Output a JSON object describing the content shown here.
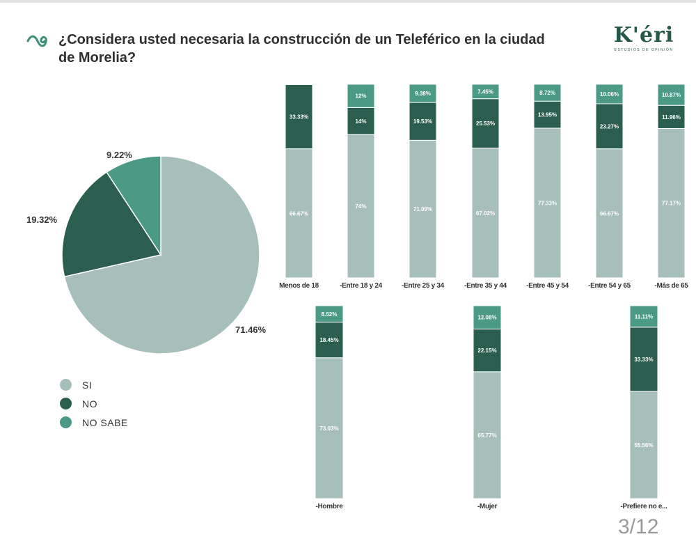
{
  "title": "¿Considera usted necesaria la construcción de un Teleférico en la ciudad de Morelia?",
  "logo": {
    "text": "K'éri",
    "subtitle": "ESTUDIOS DE OPINIÓN"
  },
  "page_number": "3/12",
  "colors": {
    "si": "#a7bfba",
    "no": "#2b5e4f",
    "no_sabe": "#4a9a85"
  },
  "legend": [
    {
      "label": "SI",
      "color": "#a7bfba"
    },
    {
      "label": "NO",
      "color": "#2b5e4f"
    },
    {
      "label": "NO SABE",
      "color": "#4a9a85"
    }
  ],
  "pie_labels": {
    "si": "71.46%",
    "no": "19.32%",
    "no_sabe": "9.22%"
  },
  "chart_data": [
    {
      "type": "pie",
      "categories": [
        "SI",
        "NO",
        "NO SABE"
      ],
      "values": [
        71.46,
        19.32,
        9.22
      ]
    },
    {
      "type": "bar",
      "stacked": true,
      "categories": [
        "Menos de 18",
        "-Entre 18 y 24",
        "-Entre 25 y 34",
        "-Entre 35 y 44",
        "-Entre 45 y 54",
        "-Entre 54 y 65",
        "-Más de 65"
      ],
      "series": [
        {
          "name": "SI",
          "values": [
            66.67,
            74,
            71.09,
            67.02,
            77.33,
            66.67,
            77.17
          ],
          "labels": [
            "66.67%",
            "74%",
            "71.09%",
            "67.02%",
            "77.33%",
            "66.67%",
            "77.17%"
          ]
        },
        {
          "name": "NO",
          "values": [
            33.33,
            14,
            19.53,
            25.53,
            13.95,
            23.27,
            11.96
          ],
          "labels": [
            "33.33%",
            "14%",
            "19.53%",
            "25.53%",
            "13.95%",
            "23.27%",
            "11.96%"
          ]
        },
        {
          "name": "NO SABE",
          "values": [
            0,
            12,
            9.38,
            7.45,
            8.72,
            10.06,
            10.87
          ],
          "labels": [
            "",
            "12%",
            "9.38%",
            "7.45%",
            "8.72%",
            "10.06%",
            "10.87%"
          ]
        }
      ]
    },
    {
      "type": "bar",
      "stacked": true,
      "categories": [
        "-Hombre",
        "-Mujer",
        "-Prefiere no e..."
      ],
      "series": [
        {
          "name": "SI",
          "values": [
            73.03,
            65.77,
            55.56
          ],
          "labels": [
            "73.03%",
            "65.77%",
            "55.56%"
          ]
        },
        {
          "name": "NO",
          "values": [
            18.45,
            22.15,
            33.33
          ],
          "labels": [
            "18.45%",
            "22.15%",
            "33.33%"
          ]
        },
        {
          "name": "NO SABE",
          "values": [
            8.52,
            12.08,
            11.11
          ],
          "labels": [
            "8.52%",
            "12.08%",
            "11.11%"
          ]
        }
      ]
    }
  ]
}
